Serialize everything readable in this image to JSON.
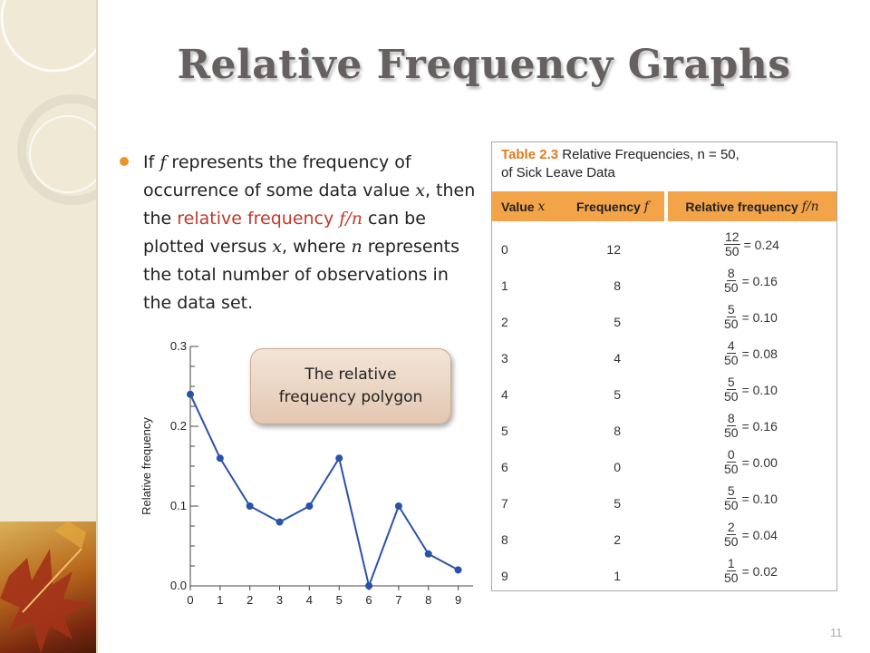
{
  "slide": {
    "title": "Relative Frequency Graphs",
    "page_number": "11"
  },
  "bullet": {
    "part1": "If ",
    "f1": "f",
    "part2": " represents the frequency of occurrence of some data value ",
    "x1": "x",
    "part3": ", then the ",
    "highlight": "relative frequency ",
    "fn": "f/n",
    "part4": " can be plotted versus ",
    "x2": "x",
    "part5": ", where ",
    "n1": "n",
    "part6": " represents the total number of observations in the data set."
  },
  "callout": {
    "line1": "The relative",
    "line2": "frequency polygon"
  },
  "table": {
    "caption_label": "Table 2.3",
    "caption_text": "Relative Frequencies, n = 50,",
    "caption_line2": "of Sick Leave Data",
    "headers": {
      "value": "Value",
      "value_var": "x",
      "frequency": "Frequency",
      "frequency_var": "f",
      "relative": "Relative frequency",
      "relative_var": "f/n"
    },
    "rows": [
      {
        "value": "0",
        "freq": "12",
        "num": "12",
        "den": "50",
        "rel": "= 0.24"
      },
      {
        "value": "1",
        "freq": "8",
        "num": "8",
        "den": "50",
        "rel": "= 0.16"
      },
      {
        "value": "2",
        "freq": "5",
        "num": "5",
        "den": "50",
        "rel": "= 0.10"
      },
      {
        "value": "3",
        "freq": "4",
        "num": "4",
        "den": "50",
        "rel": "= 0.08"
      },
      {
        "value": "4",
        "freq": "5",
        "num": "5",
        "den": "50",
        "rel": "= 0.10"
      },
      {
        "value": "5",
        "freq": "8",
        "num": "8",
        "den": "50",
        "rel": "= 0.16"
      },
      {
        "value": "6",
        "freq": "0",
        "num": "0",
        "den": "50",
        "rel": "= 0.00"
      },
      {
        "value": "7",
        "freq": "5",
        "num": "5",
        "den": "50",
        "rel": "= 0.10"
      },
      {
        "value": "8",
        "freq": "2",
        "num": "2",
        "den": "50",
        "rel": "= 0.04"
      },
      {
        "value": "9",
        "freq": "1",
        "num": "1",
        "den": "50",
        "rel": "= 0.02"
      }
    ]
  },
  "chart_data": {
    "type": "line",
    "ylabel": "Relative frequency",
    "xlabel": "",
    "x": [
      0,
      1,
      2,
      3,
      4,
      5,
      6,
      7,
      8,
      9
    ],
    "x_tick_labels": [
      "0",
      "1",
      "2",
      "3",
      "4",
      "5",
      "6",
      "7",
      "8",
      "9"
    ],
    "y_tick_labels": [
      "0.0",
      "0.1",
      "0.2",
      "0.3"
    ],
    "y_ticks": [
      0,
      0.1,
      0.2,
      0.3
    ],
    "series": [
      {
        "values": [
          0.24,
          0.16,
          0.1,
          0.08,
          0.1,
          0.16,
          0.0,
          0.1,
          0.04,
          0.02
        ]
      }
    ],
    "ylim": [
      0,
      0.3
    ],
    "xlim": [
      0,
      9.5
    ],
    "grid": false,
    "line_color": "#2a52a8"
  }
}
